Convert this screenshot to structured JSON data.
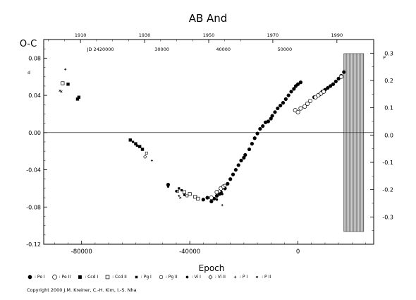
{
  "chart_data": {
    "type": "scatter",
    "title": "AB And",
    "ylabel": "O-C",
    "xlabel": "Epoch",
    "xlim": [
      -94000,
      28000
    ],
    "ylim": [
      -0.12,
      0.1
    ],
    "y_unit_mark": "d",
    "x_ticks": [
      "-80000",
      "-40000",
      "0"
    ],
    "x_tick_values": [
      -80000,
      -40000,
      0
    ],
    "y_ticks": [
      "0.08",
      "0.04",
      "0.00",
      "-0.04",
      "-0.08",
      "-0.12"
    ],
    "y_tick_values": [
      0.08,
      0.04,
      0.0,
      -0.04,
      -0.08,
      -0.12
    ],
    "right_axis": {
      "label_mark": "P",
      "ticks": [
        "0.3",
        "0.2",
        "0.1",
        "0.0",
        "-0.1",
        "-0.2",
        "-0.3"
      ],
      "tick_values": [
        0.3,
        0.2,
        0.1,
        0.0,
        -0.1,
        -0.2,
        -0.3
      ]
    },
    "top_year_axis": {
      "years": [
        "1910",
        "1930",
        "1950",
        "1970",
        "1990"
      ],
      "epochs": [
        -80400,
        -56700,
        -33000,
        -9300,
        14400
      ]
    },
    "top_jd_axis": {
      "prefix": "JD 2420000",
      "labels": [
        "30000",
        "40000",
        "50000"
      ],
      "epochs": [
        -50300,
        -27600,
        -4900
      ],
      "first_epoch": -73000
    },
    "hatch_start": 17000,
    "series": [
      {
        "name": "Pe I",
        "marker": "filled-circle",
        "x": [
          -48000,
          -35000,
          -33500,
          -32000,
          -31000,
          -30000,
          -29000,
          -28500,
          -27000,
          -26000,
          -25000,
          -24000,
          -23000,
          -22000,
          -21000,
          -20000,
          -19500,
          -18000,
          -17000,
          -16000,
          -15000,
          -14000,
          -13000,
          -12000,
          -11000,
          -10000,
          -9500,
          -8500,
          -7500,
          -6500,
          -5500,
          -4500,
          -3500,
          -2500,
          -1500,
          -800,
          0,
          1000,
          6000,
          8000,
          9000,
          10000,
          11000,
          12000,
          13000,
          14000,
          15000,
          16000,
          17000
        ],
        "y": [
          -0.056,
          -0.072,
          -0.07,
          -0.074,
          -0.071,
          -0.068,
          -0.066,
          -0.064,
          -0.06,
          -0.055,
          -0.05,
          -0.045,
          -0.04,
          -0.035,
          -0.03,
          -0.027,
          -0.024,
          -0.018,
          -0.012,
          -0.006,
          -0.001,
          0.004,
          0.007,
          0.011,
          0.012,
          0.015,
          0.018,
          0.022,
          0.026,
          0.029,
          0.032,
          0.036,
          0.04,
          0.044,
          0.047,
          0.05,
          0.052,
          0.054,
          0.038,
          0.041,
          0.044,
          0.046,
          0.048,
          0.05,
          0.052,
          0.055,
          0.058,
          0.061,
          0.065
        ]
      },
      {
        "name": "Pe II",
        "marker": "open-circle",
        "x": [
          -32000,
          -30000,
          -28500,
          -27500,
          -1000,
          0,
          1000,
          2500,
          3500,
          4500,
          6500,
          7500,
          8500,
          9500,
          16000
        ],
        "y": [
          -0.07,
          -0.064,
          -0.06,
          -0.058,
          0.024,
          0.022,
          0.026,
          0.028,
          0.031,
          0.034,
          0.038,
          0.04,
          0.042,
          0.044,
          0.06
        ]
      },
      {
        "name": "Ccd I",
        "marker": "filled-square",
        "x": [
          -85000,
          -81500,
          -81000,
          -62000,
          -60000,
          -58500,
          -57500
        ],
        "y": [
          0.052,
          0.036,
          0.038,
          -0.008,
          -0.012,
          -0.015,
          -0.018
        ]
      },
      {
        "name": "Ccd II",
        "marker": "open-square",
        "x": [
          -87000,
          -42000,
          -40000,
          -38000,
          -37000
        ],
        "y": [
          0.053,
          -0.064,
          -0.066,
          -0.069,
          -0.071
        ]
      },
      {
        "name": "Pg I",
        "marker": "filled-square-small",
        "x": [
          -61000,
          -59500,
          -44000,
          -43000
        ],
        "y": [
          -0.01,
          -0.014,
          -0.06,
          -0.062
        ]
      },
      {
        "name": "Pg II",
        "marker": "open-square-small",
        "x": [
          -56000,
          -44500,
          -41000
        ],
        "y": [
          -0.022,
          -0.063,
          -0.068
        ]
      },
      {
        "name": "Vi I",
        "marker": "filled-circle-small",
        "x": [
          -48000,
          -45000,
          -42000,
          -30000,
          -28000
        ],
        "y": [
          -0.058,
          -0.063,
          -0.067,
          -0.072,
          -0.066
        ]
      },
      {
        "name": "Vi II",
        "marker": "open-diamond",
        "x": [
          -56500,
          -29000,
          -27000
        ],
        "y": [
          -0.026,
          -0.063,
          -0.057
        ]
      },
      {
        "name": "P I",
        "marker": "plus",
        "x": [
          -86000,
          -54000,
          -44000,
          -28000
        ],
        "y": [
          0.068,
          -0.03,
          -0.068,
          -0.078
        ]
      },
      {
        "name": "P II",
        "marker": "cross",
        "x": [
          -88000,
          -87500,
          -43500
        ],
        "y": [
          0.045,
          0.044,
          -0.07
        ]
      }
    ]
  },
  "legend": [
    {
      "marker": "filled-circle",
      "label": ": Pe I"
    },
    {
      "marker": "open-circle",
      "label": ": Pe II"
    },
    {
      "marker": "filled-square",
      "label": ": Ccd I"
    },
    {
      "marker": "open-square",
      "label": ": Ccd II"
    },
    {
      "marker": "filled-square-small",
      "label": ": Pg I"
    },
    {
      "marker": "open-square-small",
      "label": ": Pg II"
    },
    {
      "marker": "filled-circle-small",
      "label": ": Vi I"
    },
    {
      "marker": "open-diamond",
      "label": ": Vi II"
    },
    {
      "marker": "plus",
      "label": ": P I"
    },
    {
      "marker": "cross",
      "label": ": P II"
    }
  ],
  "copyright": "Copyright 2000 J.M. Kreiner, C.-H. Kim, I.-S. Nha"
}
